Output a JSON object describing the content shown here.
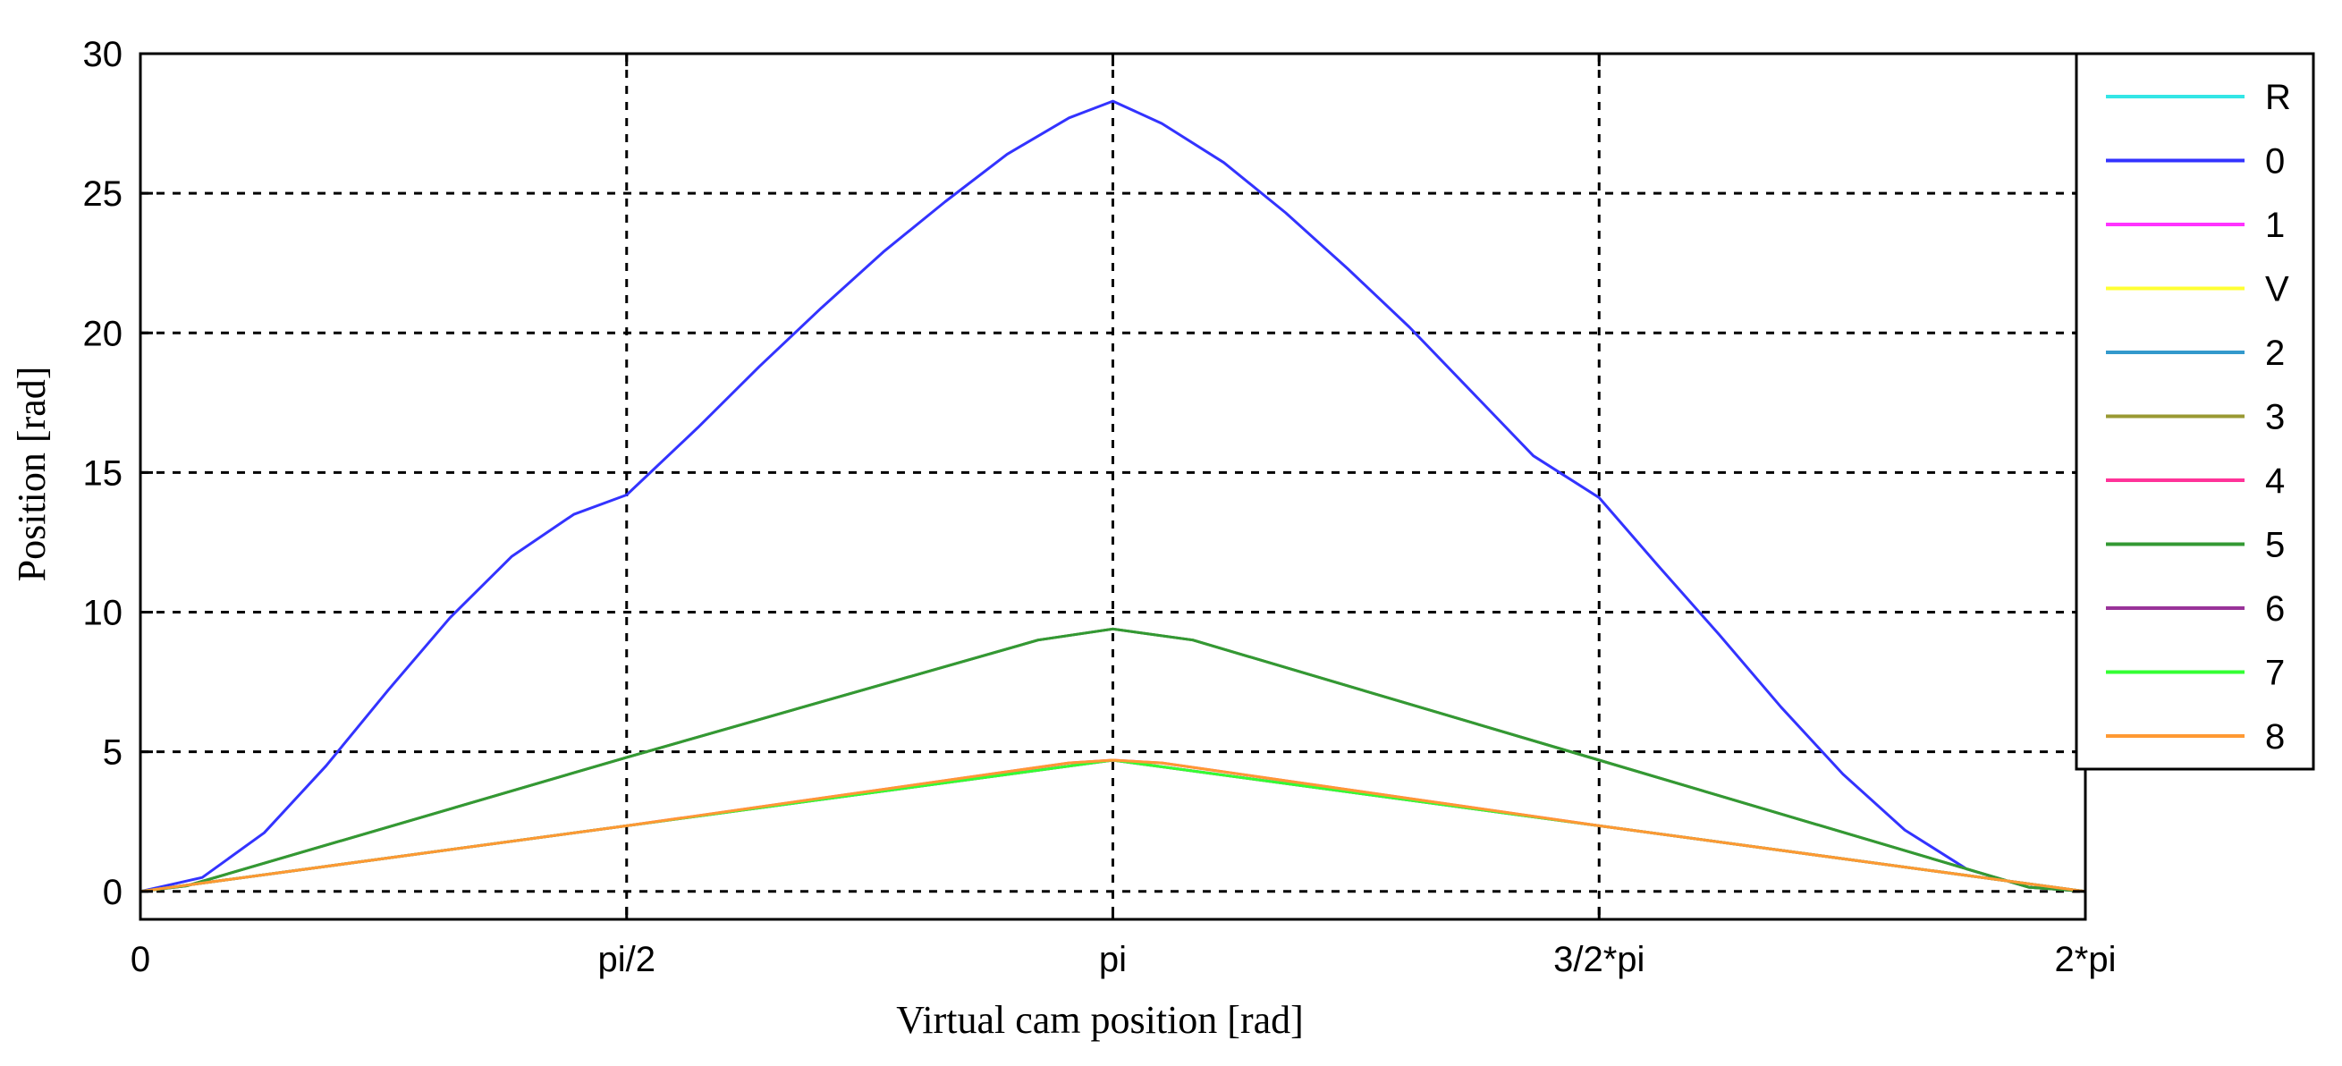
{
  "chart_data": {
    "type": "line",
    "title": "",
    "xlabel": "Virtual cam position [rad]",
    "ylabel": "Position [rad]",
    "xlim": [
      0,
      6.2832
    ],
    "ylim": [
      -1,
      30
    ],
    "grid": true,
    "grid_style": "dashed",
    "legend_position": "top-right",
    "xticks": [
      {
        "value": 0,
        "label": "0"
      },
      {
        "value": 1.5708,
        "label": "pi/2"
      },
      {
        "value": 3.1416,
        "label": "pi"
      },
      {
        "value": 4.7124,
        "label": "3/2*pi"
      },
      {
        "value": 6.2832,
        "label": "2*pi"
      }
    ],
    "yticks": [
      {
        "value": 0,
        "label": "0"
      },
      {
        "value": 5,
        "label": "5"
      },
      {
        "value": 10,
        "label": "10"
      },
      {
        "value": 15,
        "label": "15"
      },
      {
        "value": 20,
        "label": "20"
      },
      {
        "value": 25,
        "label": "25"
      },
      {
        "value": 30,
        "label": "30"
      }
    ],
    "series": [
      {
        "name": "R",
        "color": "#33e6e6",
        "x": [
          0,
          3.1416,
          6.2832
        ],
        "y": [
          0,
          4.7,
          0
        ]
      },
      {
        "name": "0",
        "color": "#3333ff",
        "x": [
          0,
          0.2,
          0.4,
          0.6,
          0.8,
          1.0,
          1.2,
          1.4,
          1.5708,
          1.8,
          2.0,
          2.2,
          2.4,
          2.6,
          2.8,
          3.0,
          3.1416,
          3.3,
          3.5,
          3.7,
          3.9,
          4.1,
          4.3,
          4.5,
          4.7124,
          4.9,
          5.1,
          5.3,
          5.5,
          5.7,
          5.9,
          6.1,
          6.2832
        ],
        "y": [
          0,
          0.5,
          2.1,
          4.5,
          7.2,
          9.8,
          12.0,
          13.5,
          14.2,
          16.6,
          18.8,
          20.9,
          22.9,
          24.7,
          26.4,
          27.7,
          28.3,
          27.5,
          26.1,
          24.3,
          22.3,
          20.2,
          17.9,
          15.6,
          14.1,
          11.7,
          9.2,
          6.6,
          4.2,
          2.2,
          0.8,
          0.15,
          0
        ]
      },
      {
        "name": "1",
        "color": "#ff33ff",
        "x": [
          0,
          3.1416,
          6.2832
        ],
        "y": [
          0,
          4.7,
          0
        ]
      },
      {
        "name": "V",
        "color": "#ffff33",
        "x": [
          0,
          3.1416,
          6.2832
        ],
        "y": [
          0,
          4.7,
          0
        ]
      },
      {
        "name": "2",
        "color": "#3399cc",
        "x": [
          0,
          0.15,
          1.5708,
          2.9,
          3.1416,
          3.4,
          4.7124,
          6.1,
          6.2832
        ],
        "y": [
          0,
          0.2,
          4.8,
          9.0,
          9.4,
          9.0,
          4.7,
          0.15,
          0
        ]
      },
      {
        "name": "3",
        "color": "#999933",
        "x": [
          0,
          0.15,
          1.5708,
          2.9,
          3.1416,
          3.4,
          4.7124,
          6.1,
          6.2832
        ],
        "y": [
          0,
          0.2,
          4.8,
          9.0,
          9.4,
          9.0,
          4.7,
          0.15,
          0
        ]
      },
      {
        "name": "4",
        "color": "#ff3399",
        "x": [
          0,
          1.5708,
          3.0,
          3.1416,
          3.3,
          4.7124,
          6.2832
        ],
        "y": [
          0,
          2.35,
          4.6,
          4.7,
          4.6,
          2.35,
          0
        ]
      },
      {
        "name": "5",
        "color": "#339933",
        "x": [
          0,
          0.15,
          1.5708,
          2.9,
          3.1416,
          3.4,
          4.7124,
          6.1,
          6.2832
        ],
        "y": [
          0,
          0.2,
          4.8,
          9.0,
          9.4,
          9.0,
          4.7,
          0.15,
          0
        ]
      },
      {
        "name": "6",
        "color": "#993399",
        "x": [
          0,
          3.1416,
          6.2832
        ],
        "y": [
          0,
          4.7,
          0
        ]
      },
      {
        "name": "7",
        "color": "#33ff33",
        "x": [
          0,
          3.1416,
          6.2832
        ],
        "y": [
          0,
          4.7,
          0
        ]
      },
      {
        "name": "8",
        "color": "#ff9933",
        "x": [
          0,
          1.5708,
          3.0,
          3.1416,
          3.3,
          4.7124,
          6.2832
        ],
        "y": [
          0,
          2.35,
          4.6,
          4.7,
          4.6,
          2.35,
          0
        ]
      }
    ]
  }
}
